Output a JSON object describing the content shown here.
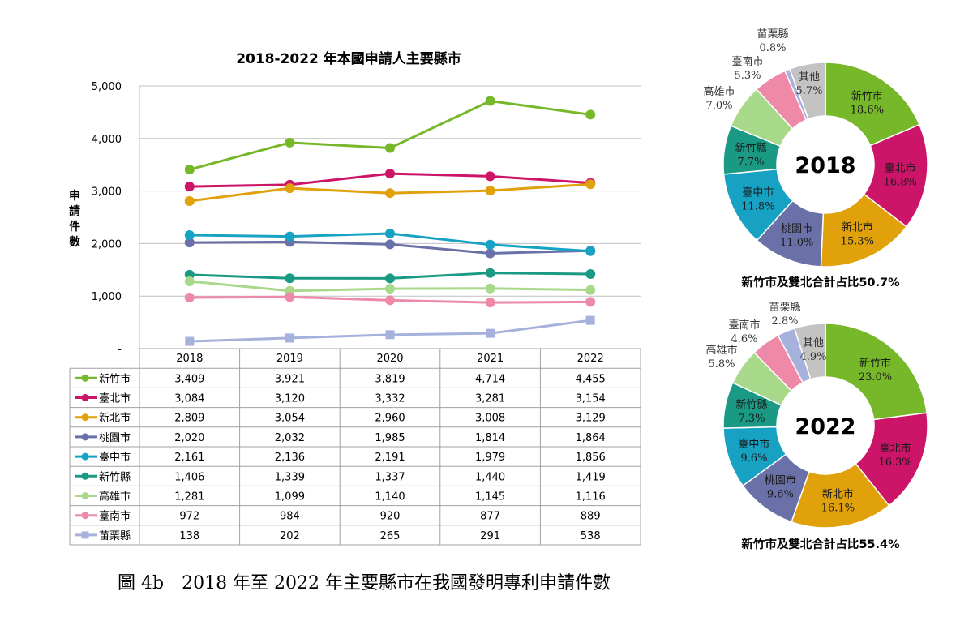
{
  "figure_caption": "圖 4b　2018 年至 2022 年主要縣市在我國發明專利申請件數",
  "colors": {
    "新竹市": "#76b82a",
    "臺北市": "#cc1469",
    "新北市": "#e0a10a",
    "桃園市": "#6a70a8",
    "臺中市": "#17a2c4",
    "新竹縣": "#1a9a85",
    "高雄市": "#a8d98a",
    "臺南市": "#ee8aa8",
    "苗栗縣": "#a6b1dc",
    "其他": "#c3c3c3",
    "axis_grid": "#c0c0c0"
  },
  "chart_data": [
    {
      "type": "line",
      "title": "2018-2022 年本國申請人主要縣市",
      "ylabel": "申請件數",
      "ylim": [
        0,
        5000
      ],
      "yticks": [
        "-",
        "1,000",
        "2,000",
        "3,000",
        "4,000",
        "5,000"
      ],
      "ytick_values": [
        0,
        1000,
        2000,
        3000,
        4000,
        5000
      ],
      "grid": true,
      "legend": "data-table-below",
      "categories": [
        "2018",
        "2019",
        "2020",
        "2021",
        "2022"
      ],
      "series": [
        {
          "name": "新竹市",
          "values": [
            3409,
            3921,
            3819,
            4714,
            4455
          ],
          "labels": [
            "3,409",
            "3,921",
            "3,819",
            "4,714",
            "4,455"
          ],
          "marker": "circle"
        },
        {
          "name": "臺北市",
          "values": [
            3084,
            3120,
            3332,
            3281,
            3154
          ],
          "labels": [
            "3,084",
            "3,120",
            "3,332",
            "3,281",
            "3,154"
          ],
          "marker": "circle"
        },
        {
          "name": "新北市",
          "values": [
            2809,
            3054,
            2960,
            3008,
            3129
          ],
          "labels": [
            "2,809",
            "3,054",
            "2,960",
            "3,008",
            "3,129"
          ],
          "marker": "circle"
        },
        {
          "name": "桃園市",
          "values": [
            2020,
            2032,
            1985,
            1814,
            1864
          ],
          "labels": [
            "2,020",
            "2,032",
            "1,985",
            "1,814",
            "1,864"
          ],
          "marker": "circle"
        },
        {
          "name": "臺中市",
          "values": [
            2161,
            2136,
            2191,
            1979,
            1856
          ],
          "labels": [
            "2,161",
            "2,136",
            "2,191",
            "1,979",
            "1,856"
          ],
          "marker": "circle"
        },
        {
          "name": "新竹縣",
          "values": [
            1406,
            1339,
            1337,
            1440,
            1419
          ],
          "labels": [
            "1,406",
            "1,339",
            "1,337",
            "1,440",
            "1,419"
          ],
          "marker": "circle"
        },
        {
          "name": "高雄市",
          "values": [
            1281,
            1099,
            1140,
            1145,
            1116
          ],
          "labels": [
            "1,281",
            "1,099",
            "1,140",
            "1,145",
            "1,116"
          ],
          "marker": "circle"
        },
        {
          "name": "臺南市",
          "values": [
            972,
            984,
            920,
            877,
            889
          ],
          "labels": [
            "972",
            "984",
            "920",
            "877",
            "889"
          ],
          "marker": "circle"
        },
        {
          "name": "苗栗縣",
          "values": [
            138,
            202,
            265,
            291,
            538
          ],
          "labels": [
            "138",
            "202",
            "265",
            "291",
            "538"
          ],
          "marker": "square"
        }
      ]
    },
    {
      "type": "pie",
      "donut": true,
      "center_label": "2018",
      "caption": "新竹市及雙北合計占比50.7%",
      "start": "top",
      "slices": [
        {
          "name": "新竹市",
          "value": 18.6,
          "label": "18.6%"
        },
        {
          "name": "臺北市",
          "value": 16.8,
          "label": "16.8%"
        },
        {
          "name": "新北市",
          "value": 15.3,
          "label": "15.3%"
        },
        {
          "name": "桃園市",
          "value": 11.0,
          "label": "11.0%"
        },
        {
          "name": "臺中市",
          "value": 11.8,
          "label": "11.8%"
        },
        {
          "name": "新竹縣",
          "value": 7.7,
          "label": "7.7%"
        },
        {
          "name": "高雄市",
          "value": 7.0,
          "label": "7.0%"
        },
        {
          "name": "臺南市",
          "value": 5.3,
          "label": "5.3%"
        },
        {
          "name": "苗栗縣",
          "value": 0.8,
          "label": "0.8%"
        },
        {
          "name": "其他",
          "value": 5.7,
          "label": "5.7%"
        }
      ]
    },
    {
      "type": "pie",
      "donut": true,
      "center_label": "2022",
      "caption": "新竹市及雙北合計占比55.4%",
      "start": "top",
      "slices": [
        {
          "name": "新竹市",
          "value": 23.0,
          "label": "23.0%"
        },
        {
          "name": "臺北市",
          "value": 16.3,
          "label": "16.3%"
        },
        {
          "name": "新北市",
          "value": 16.1,
          "label": "16.1%"
        },
        {
          "name": "桃園市",
          "value": 9.6,
          "label": "9.6%"
        },
        {
          "name": "臺中市",
          "value": 9.6,
          "label": "9.6%"
        },
        {
          "name": "新竹縣",
          "value": 7.3,
          "label": "7.3%"
        },
        {
          "name": "高雄市",
          "value": 5.8,
          "label": "5.8%"
        },
        {
          "name": "臺南市",
          "value": 4.6,
          "label": "4.6%"
        },
        {
          "name": "苗栗縣",
          "value": 2.8,
          "label": "2.8%"
        },
        {
          "name": "其他",
          "value": 4.9,
          "label": "4.9%"
        }
      ]
    }
  ]
}
